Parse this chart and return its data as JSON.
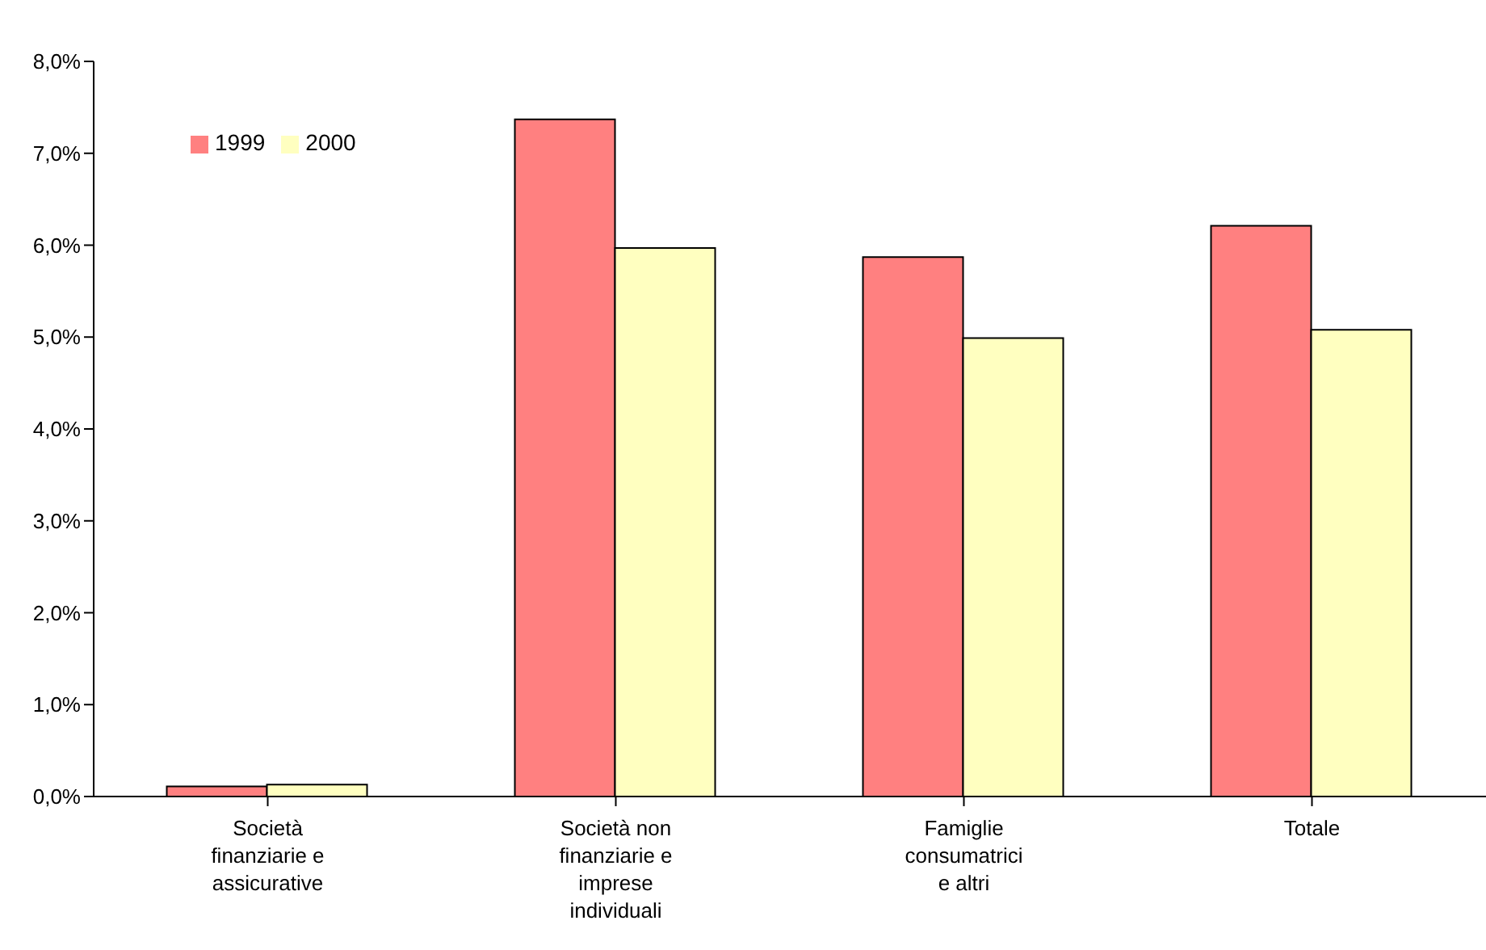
{
  "chart_data": {
    "type": "bar",
    "categories": [
      "Società finanziarie e assicurative",
      "Società non finanziarie e imprese individuali",
      "Famiglie consumatrici e altri",
      "Totale"
    ],
    "series": [
      {
        "name": "1999",
        "color": "#ff8080",
        "values": [
          0.11,
          7.37,
          5.87,
          6.21
        ]
      },
      {
        "name": "2000",
        "color": "#ffffc0",
        "values": [
          0.13,
          5.97,
          4.99,
          5.08
        ]
      }
    ],
    "ylim": [
      0,
      8
    ],
    "yticks": [
      {
        "value": 0,
        "label": "0,0%"
      },
      {
        "value": 1,
        "label": "1,0%"
      },
      {
        "value": 2,
        "label": "2,0%"
      },
      {
        "value": 3,
        "label": "3,0%"
      },
      {
        "value": 4,
        "label": "4,0%"
      },
      {
        "value": 5,
        "label": "5,0%"
      },
      {
        "value": 6,
        "label": "6,0%"
      },
      {
        "value": 7,
        "label": "7,0%"
      },
      {
        "value": 8,
        "label": "8,0%"
      }
    ],
    "grid": false,
    "legend": "top left"
  }
}
